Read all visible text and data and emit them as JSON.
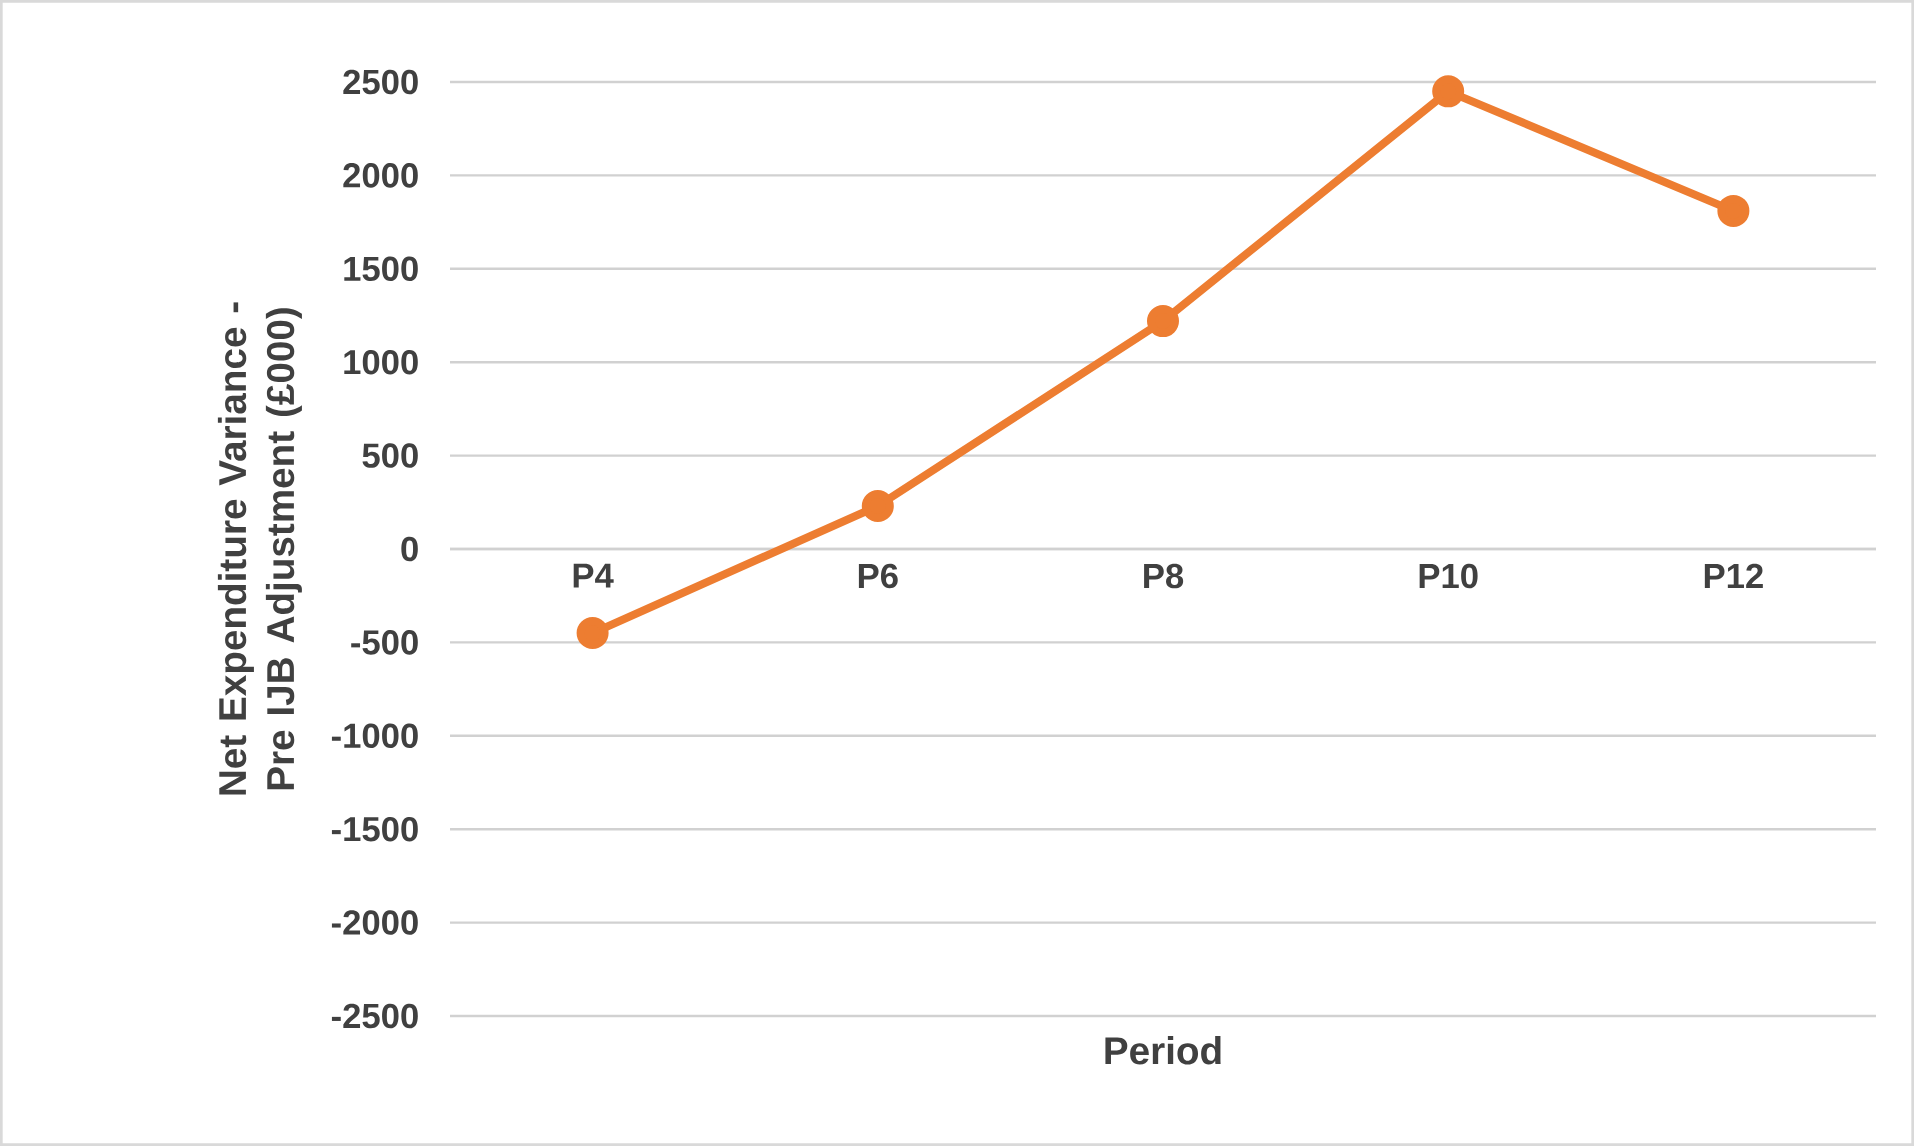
{
  "chart_data": {
    "type": "line",
    "xlabel": "Period",
    "ylabel": "Net Expenditure Variance  - Pre IJB Adjustment (£000)",
    "categories": [
      "P4",
      "P6",
      "P8",
      "P10",
      "P12"
    ],
    "series": [
      {
        "color": "#ed7d31",
        "values": [
          -450,
          230,
          1220,
          2450,
          1810
        ]
      }
    ],
    "ylim": [
      -2500,
      2500
    ],
    "yticks": [
      -2500,
      -2000,
      -1500,
      -1000,
      -500,
      0,
      500,
      1000,
      1500,
      2000,
      2500
    ],
    "grid": "y",
    "marker": "circle",
    "line_style": "solid"
  }
}
